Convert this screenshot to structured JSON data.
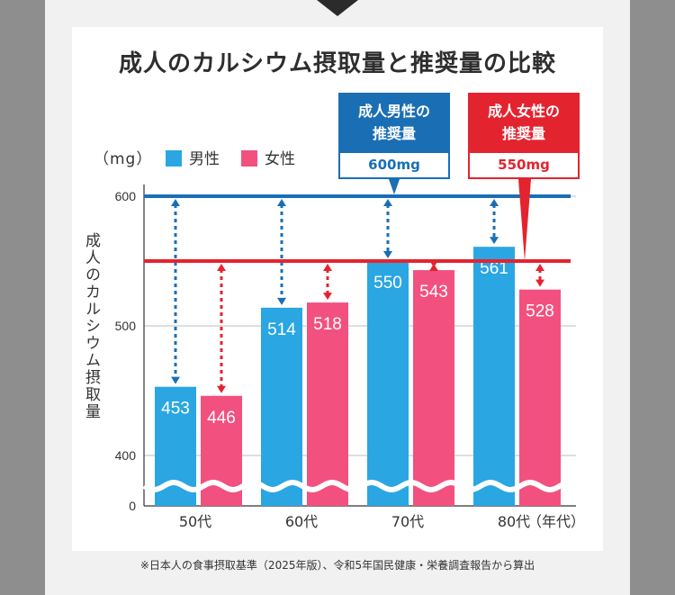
{
  "title": "成人のカルシウム摂取量と推奨量の比較",
  "unit_label": "（mg）",
  "legend": [
    {
      "label": "男性",
      "color": "#2aa6e2"
    },
    {
      "label": "女性",
      "color": "#f2517f"
    }
  ],
  "recommendations": {
    "male": {
      "label_line1": "成人男性の",
      "label_line2": "推奨量",
      "value_text": "600mg",
      "value": 600,
      "color": "#1a6fb4"
    },
    "female": {
      "label_line1": "成人女性の",
      "label_line2": "推奨量",
      "value_text": "550mg",
      "value": 550,
      "color": "#e3242f"
    }
  },
  "footnote": "※日本人の食事摂取基準（2025年版）、令和5年国民健康・栄養調査報告から算出",
  "chart_data": {
    "type": "bar",
    "title": "成人のカルシウム摂取量と推奨量の比較",
    "ylabel": "成人のカルシウム摂取量",
    "xlabel": "（年代）",
    "unit": "（mg）",
    "categories": [
      "50代",
      "60代",
      "70代",
      "80代"
    ],
    "series": [
      {
        "name": "男性",
        "values": [
          453,
          514,
          550,
          561
        ],
        "color": "#2aa6e2"
      },
      {
        "name": "女性",
        "values": [
          446,
          518,
          543,
          528
        ],
        "color": "#f2517f"
      }
    ],
    "ylim": [
      0,
      600
    ],
    "axis_break": [
      0,
      400
    ],
    "yticks": [
      0,
      400,
      500,
      600
    ],
    "reference_lines": [
      {
        "name": "成人男性の推奨量",
        "value": 600,
        "color": "#1a6fb4"
      },
      {
        "name": "成人女性の推奨量",
        "value": 550,
        "color": "#e3242f"
      }
    ]
  }
}
